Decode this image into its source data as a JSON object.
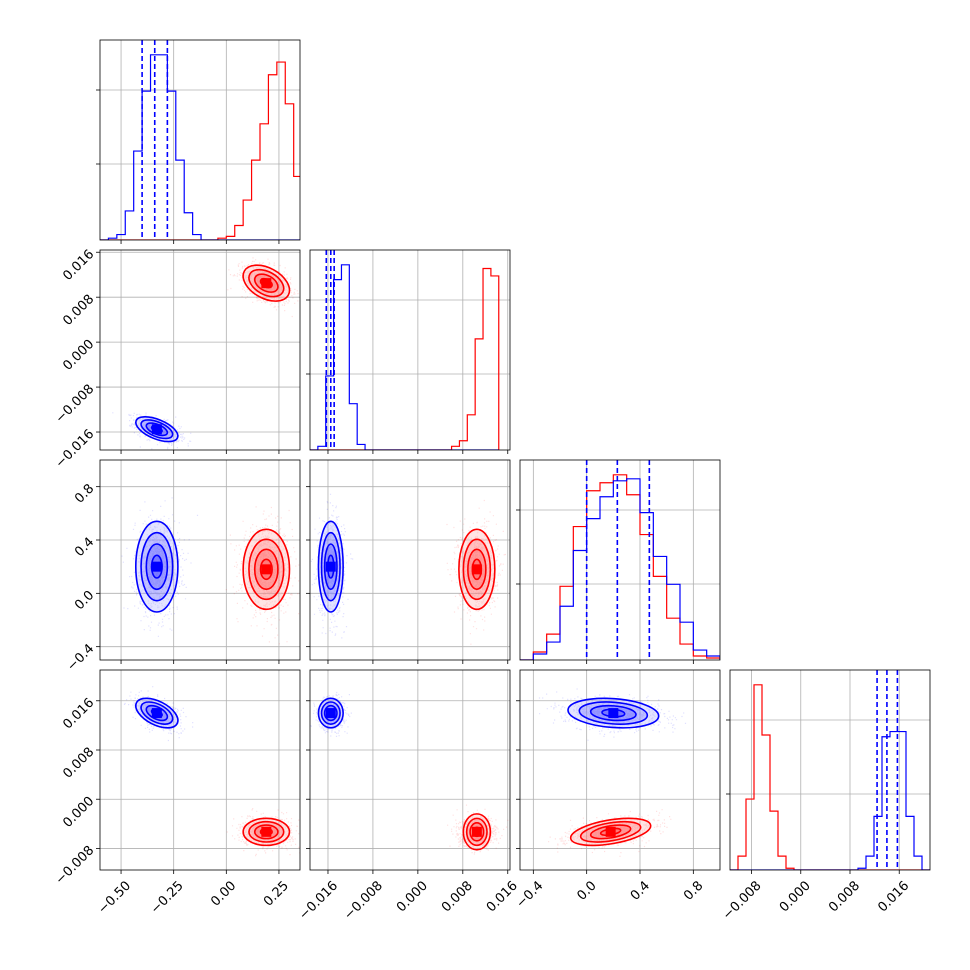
{
  "chart_data": {
    "type": "corner",
    "colors": {
      "series_a": "#0000ff",
      "series_b": "#ff0000",
      "grid": "#b0b0b0",
      "frame": "#000000"
    },
    "series": [
      {
        "color": "#0000ff",
        "quantile_lines": true
      },
      {
        "color": "#ff0000",
        "quantile_lines": false
      }
    ],
    "parameters": [
      {
        "range": [
          -0.6,
          0.35
        ],
        "ticks": [
          -0.5,
          -0.25,
          0.0,
          0.25
        ],
        "tick_labels": [
          "−0.50",
          "−0.25",
          "0.00",
          "0.25"
        ],
        "quantiles_blue": [
          -0.4,
          -0.34,
          -0.28
        ],
        "hist_x": [
          -0.6,
          -0.56,
          -0.52,
          -0.48,
          -0.44,
          -0.4,
          -0.36,
          -0.32,
          -0.28,
          -0.24,
          -0.2,
          -0.16,
          -0.12,
          -0.08,
          -0.04,
          0.0,
          0.04,
          0.08,
          0.12,
          0.16,
          0.2,
          0.24,
          0.28,
          0.32
        ],
        "hist_blue": [
          0.0,
          0.01,
          0.03,
          0.16,
          0.49,
          0.82,
          1.02,
          1.02,
          0.82,
          0.44,
          0.15,
          0.03,
          0.0,
          0.0,
          0.0,
          0.0,
          0.0,
          0.0,
          0.0,
          0.0,
          0.0,
          0.0,
          0.0,
          0.0
        ],
        "hist_red": [
          0.0,
          0.0,
          0.0,
          0.0,
          0.0,
          0.0,
          0.0,
          0.0,
          0.0,
          0.0,
          0.0,
          0.0,
          0.0,
          0.0,
          0.01,
          0.02,
          0.08,
          0.22,
          0.44,
          0.64,
          0.91,
          0.98,
          0.75,
          0.35
        ]
      },
      {
        "range": [
          -0.0192,
          0.0164
        ],
        "ticks": [
          -0.016,
          -0.008,
          0.0,
          0.008,
          0.016
        ],
        "tick_labels": [
          "−0.016",
          "−0.008",
          "0.000",
          "0.008",
          "0.016"
        ],
        "quantiles_blue": [
          -0.0163,
          -0.0155,
          -0.0149
        ],
        "hist_x": [
          -0.0192,
          -0.0178,
          -0.0164,
          -0.015,
          -0.0136,
          -0.0122,
          -0.0108,
          -0.0094,
          -0.008,
          -0.0066,
          -0.0052,
          -0.0038,
          -0.0024,
          -0.001,
          0.0004,
          0.0018,
          0.0032,
          0.0046,
          0.006,
          0.0074,
          0.0088,
          0.0102,
          0.0116,
          0.013
        ],
        "hist_blue": [
          0.0,
          0.02,
          0.4,
          0.92,
          1.0,
          0.25,
          0.03,
          0.0,
          0.0,
          0.0,
          0.0,
          0.0,
          0.0,
          0.0,
          0.0,
          0.0,
          0.0,
          0.0,
          0.0,
          0.0,
          0.0,
          0.0,
          0.0,
          0.0
        ],
        "hist_red": [
          0.0,
          0.0,
          0.0,
          0.0,
          0.0,
          0.0,
          0.0,
          0.0,
          0.0,
          0.0,
          0.0,
          0.0,
          0.0,
          0.0,
          0.0,
          0.0,
          0.0,
          0.0,
          0.02,
          0.05,
          0.19,
          0.6,
          0.98,
          0.94
        ]
      },
      {
        "range": [
          -0.5,
          1.0
        ],
        "ticks": [
          -0.4,
          0.0,
          0.4,
          0.8
        ],
        "tick_labels": [
          "−0.4",
          "0.0",
          "0.4",
          "0.8"
        ],
        "quantiles_blue": [
          0.0,
          0.23,
          0.47
        ],
        "hist_x": [
          -0.5,
          -0.4,
          -0.3,
          -0.2,
          -0.1,
          0.0,
          0.1,
          0.2,
          0.3,
          0.4,
          0.5,
          0.6,
          0.7,
          0.8,
          0.9
        ],
        "hist_blue": [
          0.0,
          0.03,
          0.09,
          0.27,
          0.55,
          0.71,
          0.82,
          0.9,
          0.91,
          0.74,
          0.52,
          0.38,
          0.19,
          0.05,
          0.02
        ],
        "hist_red": [
          0.0,
          0.04,
          0.13,
          0.37,
          0.67,
          0.85,
          0.89,
          0.93,
          0.83,
          0.63,
          0.42,
          0.21,
          0.08,
          0.02,
          0.01
        ]
      },
      {
        "range": [
          -0.0115,
          0.021
        ],
        "ticks": [
          -0.008,
          0.0,
          0.008,
          0.016
        ],
        "tick_labels": [
          "−0.008",
          "0.000",
          "0.008",
          "0.016"
        ],
        "quantiles_blue": [
          0.0124,
          0.014,
          0.0157
        ],
        "hist_x": [
          -0.0115,
          -0.0102,
          -0.0089,
          -0.0076,
          -0.0063,
          -0.005,
          -0.0037,
          -0.0024,
          -0.0011,
          0.0002,
          0.0015,
          0.0028,
          0.0041,
          0.0054,
          0.0067,
          0.008,
          0.0093,
          0.0106,
          0.0119,
          0.0132,
          0.0145,
          0.0158,
          0.0171,
          0.0184,
          0.0197
        ],
        "hist_blue": [
          0.0,
          0.0,
          0.0,
          0.0,
          0.0,
          0.0,
          0.0,
          0.0,
          0.0,
          0.0,
          0.0,
          0.0,
          0.0,
          0.0,
          0.0,
          0.0,
          0.01,
          0.08,
          0.31,
          0.77,
          0.8,
          0.8,
          0.31,
          0.08,
          0.0
        ],
        "hist_red": [
          0.0,
          0.08,
          0.41,
          1.07,
          0.78,
          0.34,
          0.08,
          0.01,
          0.0,
          0.0,
          0.0,
          0.0,
          0.0,
          0.0,
          0.0,
          0.0,
          0.0,
          0.0,
          0.0,
          0.0,
          0.0,
          0.0,
          0.0,
          0.0,
          0.0
        ]
      }
    ],
    "clusters": {
      "blue": {
        "center": [
          -0.33,
          -0.0155,
          0.2,
          0.014
        ],
        "sd": [
          0.05,
          0.0011,
          0.17,
          0.0012
        ]
      },
      "red": {
        "center": [
          0.19,
          0.0105,
          0.18,
          -0.0053
        ],
        "sd": [
          0.055,
          0.0016,
          0.15,
          0.0011
        ]
      }
    },
    "correlations": {
      "1,0": {
        "blue": -0.55,
        "red": -0.4
      },
      "2,0": {
        "blue": 0.0,
        "red": 0.0
      },
      "2,1": {
        "blue": 0.0,
        "red": 0.0
      },
      "3,0": {
        "blue": -0.5,
        "red": 0.0
      },
      "3,1": {
        "blue": 0.0,
        "red": 0.0
      },
      "3,2": {
        "blue": -0.2,
        "red": 0.45
      }
    },
    "contour_levels_sigma": [
      0.5,
      1.0,
      1.5,
      2.0
    ],
    "grid": true
  }
}
